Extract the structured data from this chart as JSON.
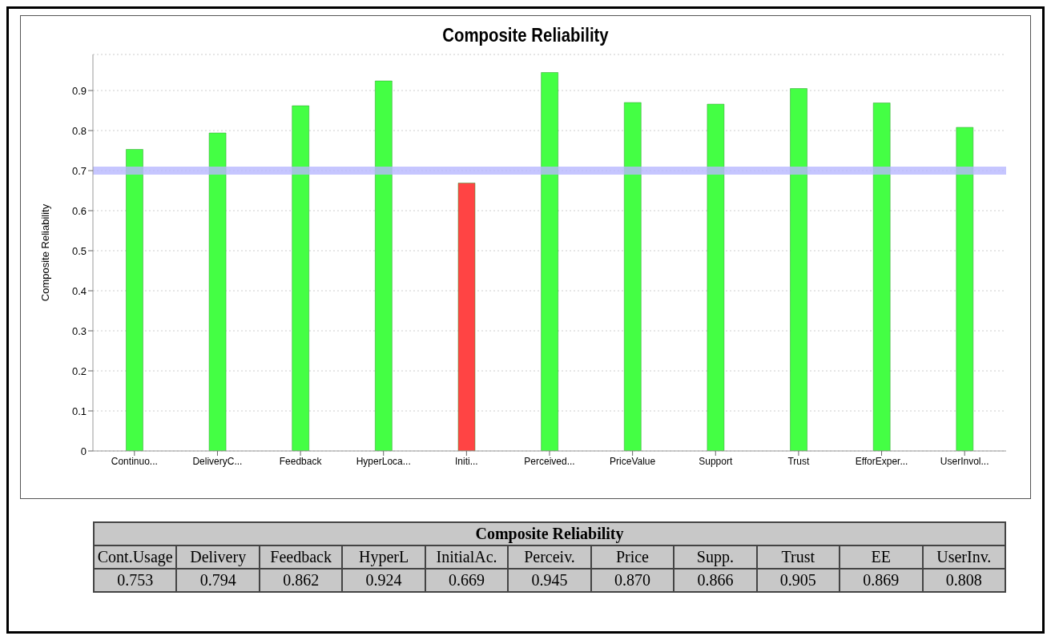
{
  "chart_data": {
    "type": "bar",
    "title": "Composite Reliability",
    "ylabel": "Composite Reliability",
    "categories": [
      "Continuo...",
      "DeliveryC...",
      "Feedback",
      "HyperLoca...",
      "Initi...",
      "Perceived...",
      "PriceValue",
      "Support",
      "Trust",
      "EfforExper...",
      "UserInvol..."
    ],
    "values": [
      0.753,
      0.794,
      0.862,
      0.924,
      0.669,
      0.945,
      0.87,
      0.866,
      0.905,
      0.869,
      0.808
    ],
    "value_labels": [
      "0.753",
      "0.794",
      "0.862",
      "0.924",
      "0.669",
      "0.945",
      "0.870",
      "0.866",
      "0.905",
      "0.869",
      "0.808"
    ],
    "colors": [
      "#44ff44",
      "#44ff44",
      "#44ff44",
      "#44ff44",
      "#ff4444",
      "#44ff44",
      "#44ff44",
      "#44ff44",
      "#44ff44",
      "#44ff44",
      "#44ff44"
    ],
    "ylim": [
      0,
      0.99
    ],
    "yticks": [
      0,
      0.1,
      0.2,
      0.3,
      0.4,
      0.5,
      0.6,
      0.7,
      0.8,
      0.9
    ],
    "grid": "y",
    "legend": false,
    "ref_lines": [
      {
        "axis": "y",
        "value": 0.7,
        "color": "#b8b8ff"
      }
    ],
    "annotations": [
      "Composite Reliability",
      "Cont.Usage",
      "Delivery",
      "Feedback",
      "HyperL",
      "InitialAc.",
      "Perceiv.",
      "Price",
      "Supp.",
      "Trust",
      "EE",
      "UserInv."
    ]
  }
}
